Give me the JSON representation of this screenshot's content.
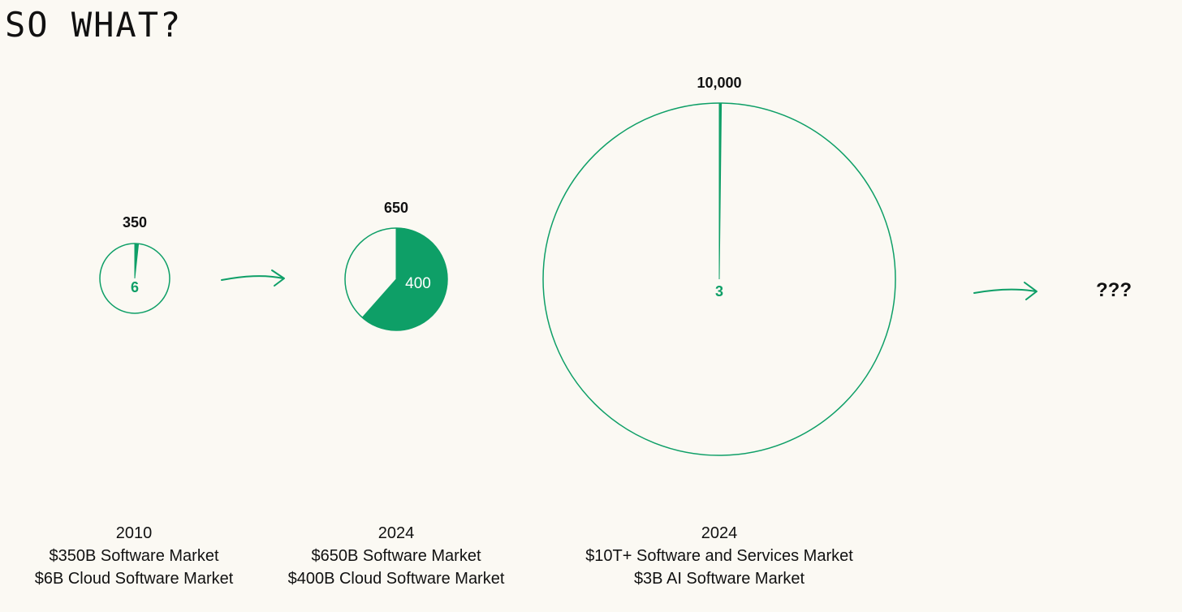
{
  "page": {
    "title": "SO WHAT?",
    "unknown_label": "???"
  },
  "colors": {
    "background": "#fbf9f3",
    "accent": "#0e9f67",
    "text": "#111111",
    "inner_label_on_fill": "#ffffff"
  },
  "chart_data": [
    {
      "type": "pie",
      "total": 350,
      "total_label": "350",
      "slice_value": 6,
      "slice_label": "6",
      "caption_lines": [
        "2010",
        "$350B Software Market",
        "$6B Cloud Software Market"
      ]
    },
    {
      "type": "pie",
      "total": 650,
      "total_label": "650",
      "slice_value": 400,
      "slice_label": "400",
      "caption_lines": [
        "2024",
        "$650B Software Market",
        "$400B Cloud Software Market"
      ]
    },
    {
      "type": "pie",
      "total": 10000,
      "total_label": "10,000",
      "slice_value": 3,
      "slice_label": "3",
      "caption_lines": [
        "2024",
        "$10T+ Software and Services Market",
        "$3B AI Software Market"
      ]
    }
  ]
}
